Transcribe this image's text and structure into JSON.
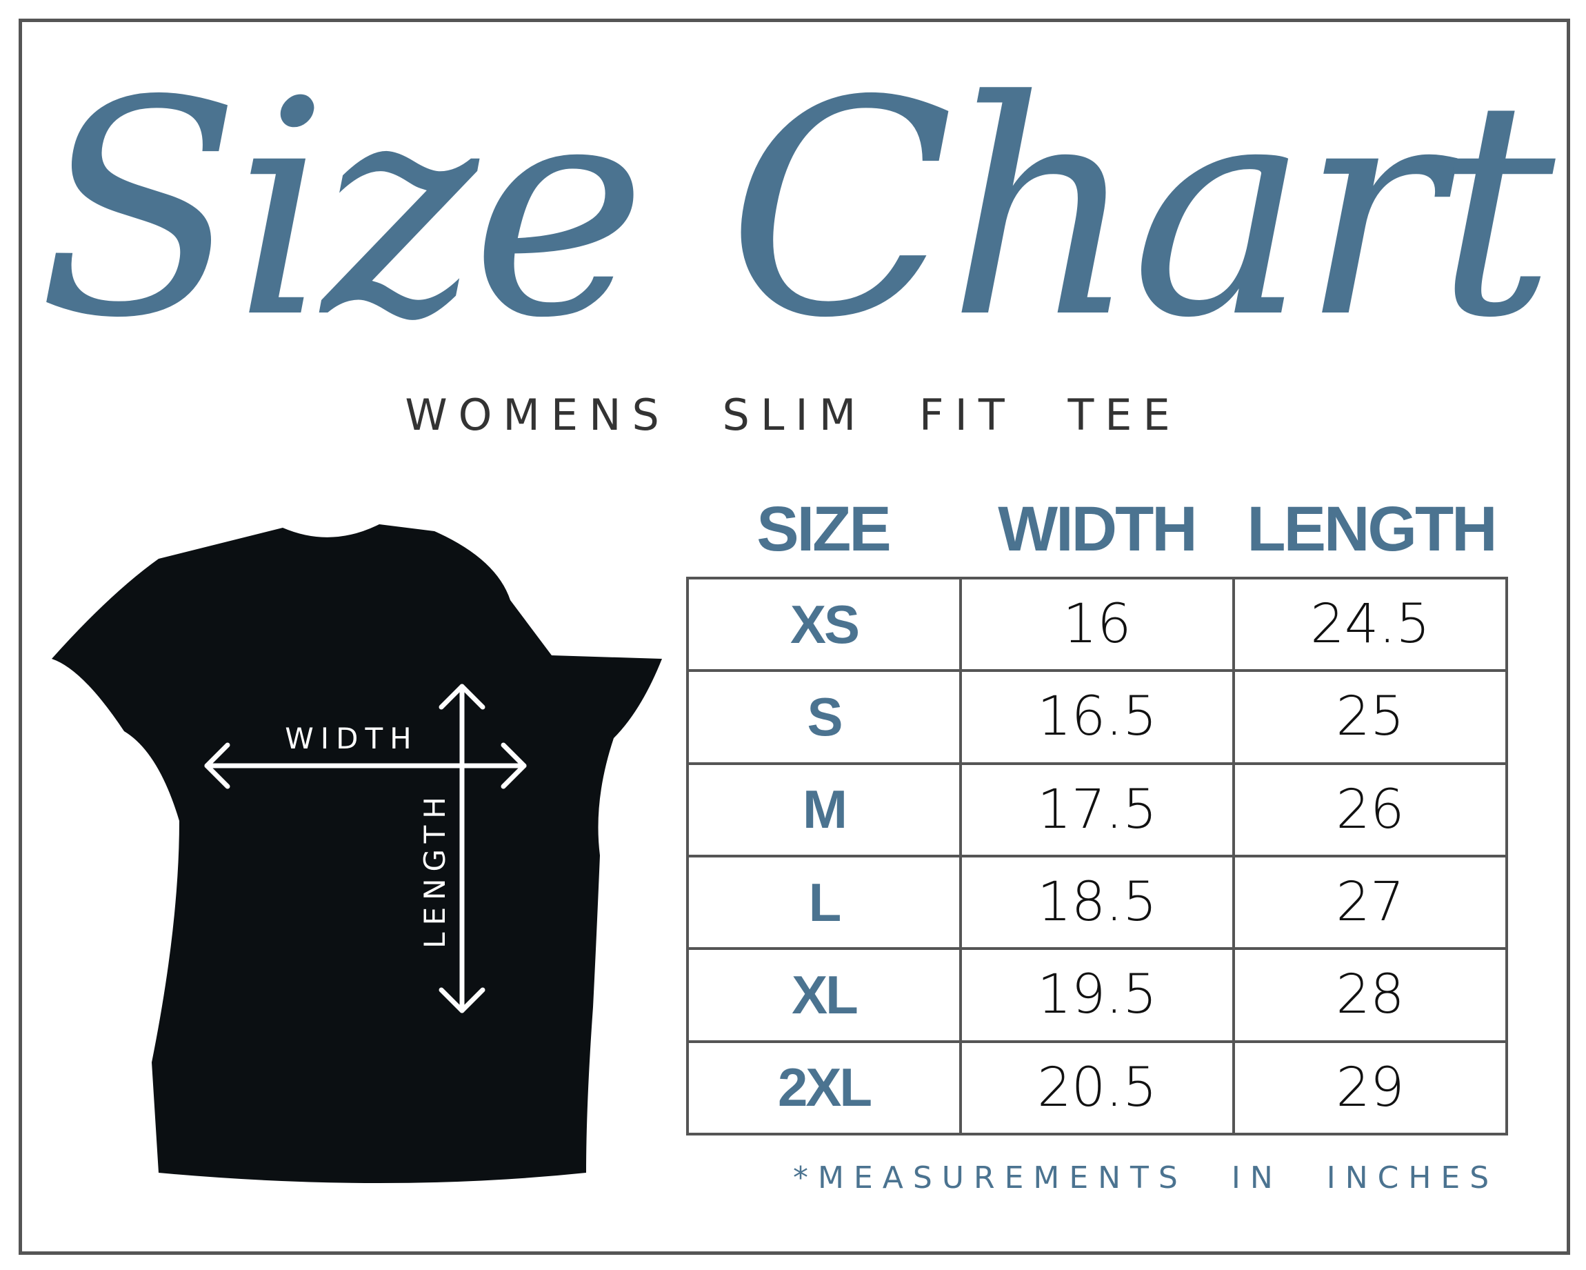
{
  "title": "Size Chart",
  "subtitle": "WOMENS SLIM FIT TEE",
  "accent_color": "#4b7390",
  "diagram": {
    "width_label": "WIDTH",
    "length_label": "LENGTH",
    "shirt_color": "#0b0f12"
  },
  "chart_data": {
    "type": "table",
    "columns": [
      "SIZE",
      "WIDTH",
      "LENGTH"
    ],
    "rows": [
      [
        "XS",
        "16",
        "24.5"
      ],
      [
        "S",
        "16.5",
        "25"
      ],
      [
        "M",
        "17.5",
        "26"
      ],
      [
        "L",
        "18.5",
        "27"
      ],
      [
        "XL",
        "19.5",
        "28"
      ],
      [
        "2XL",
        "20.5",
        "29"
      ]
    ]
  },
  "footnote": "*MEASUREMENTS IN INCHES"
}
